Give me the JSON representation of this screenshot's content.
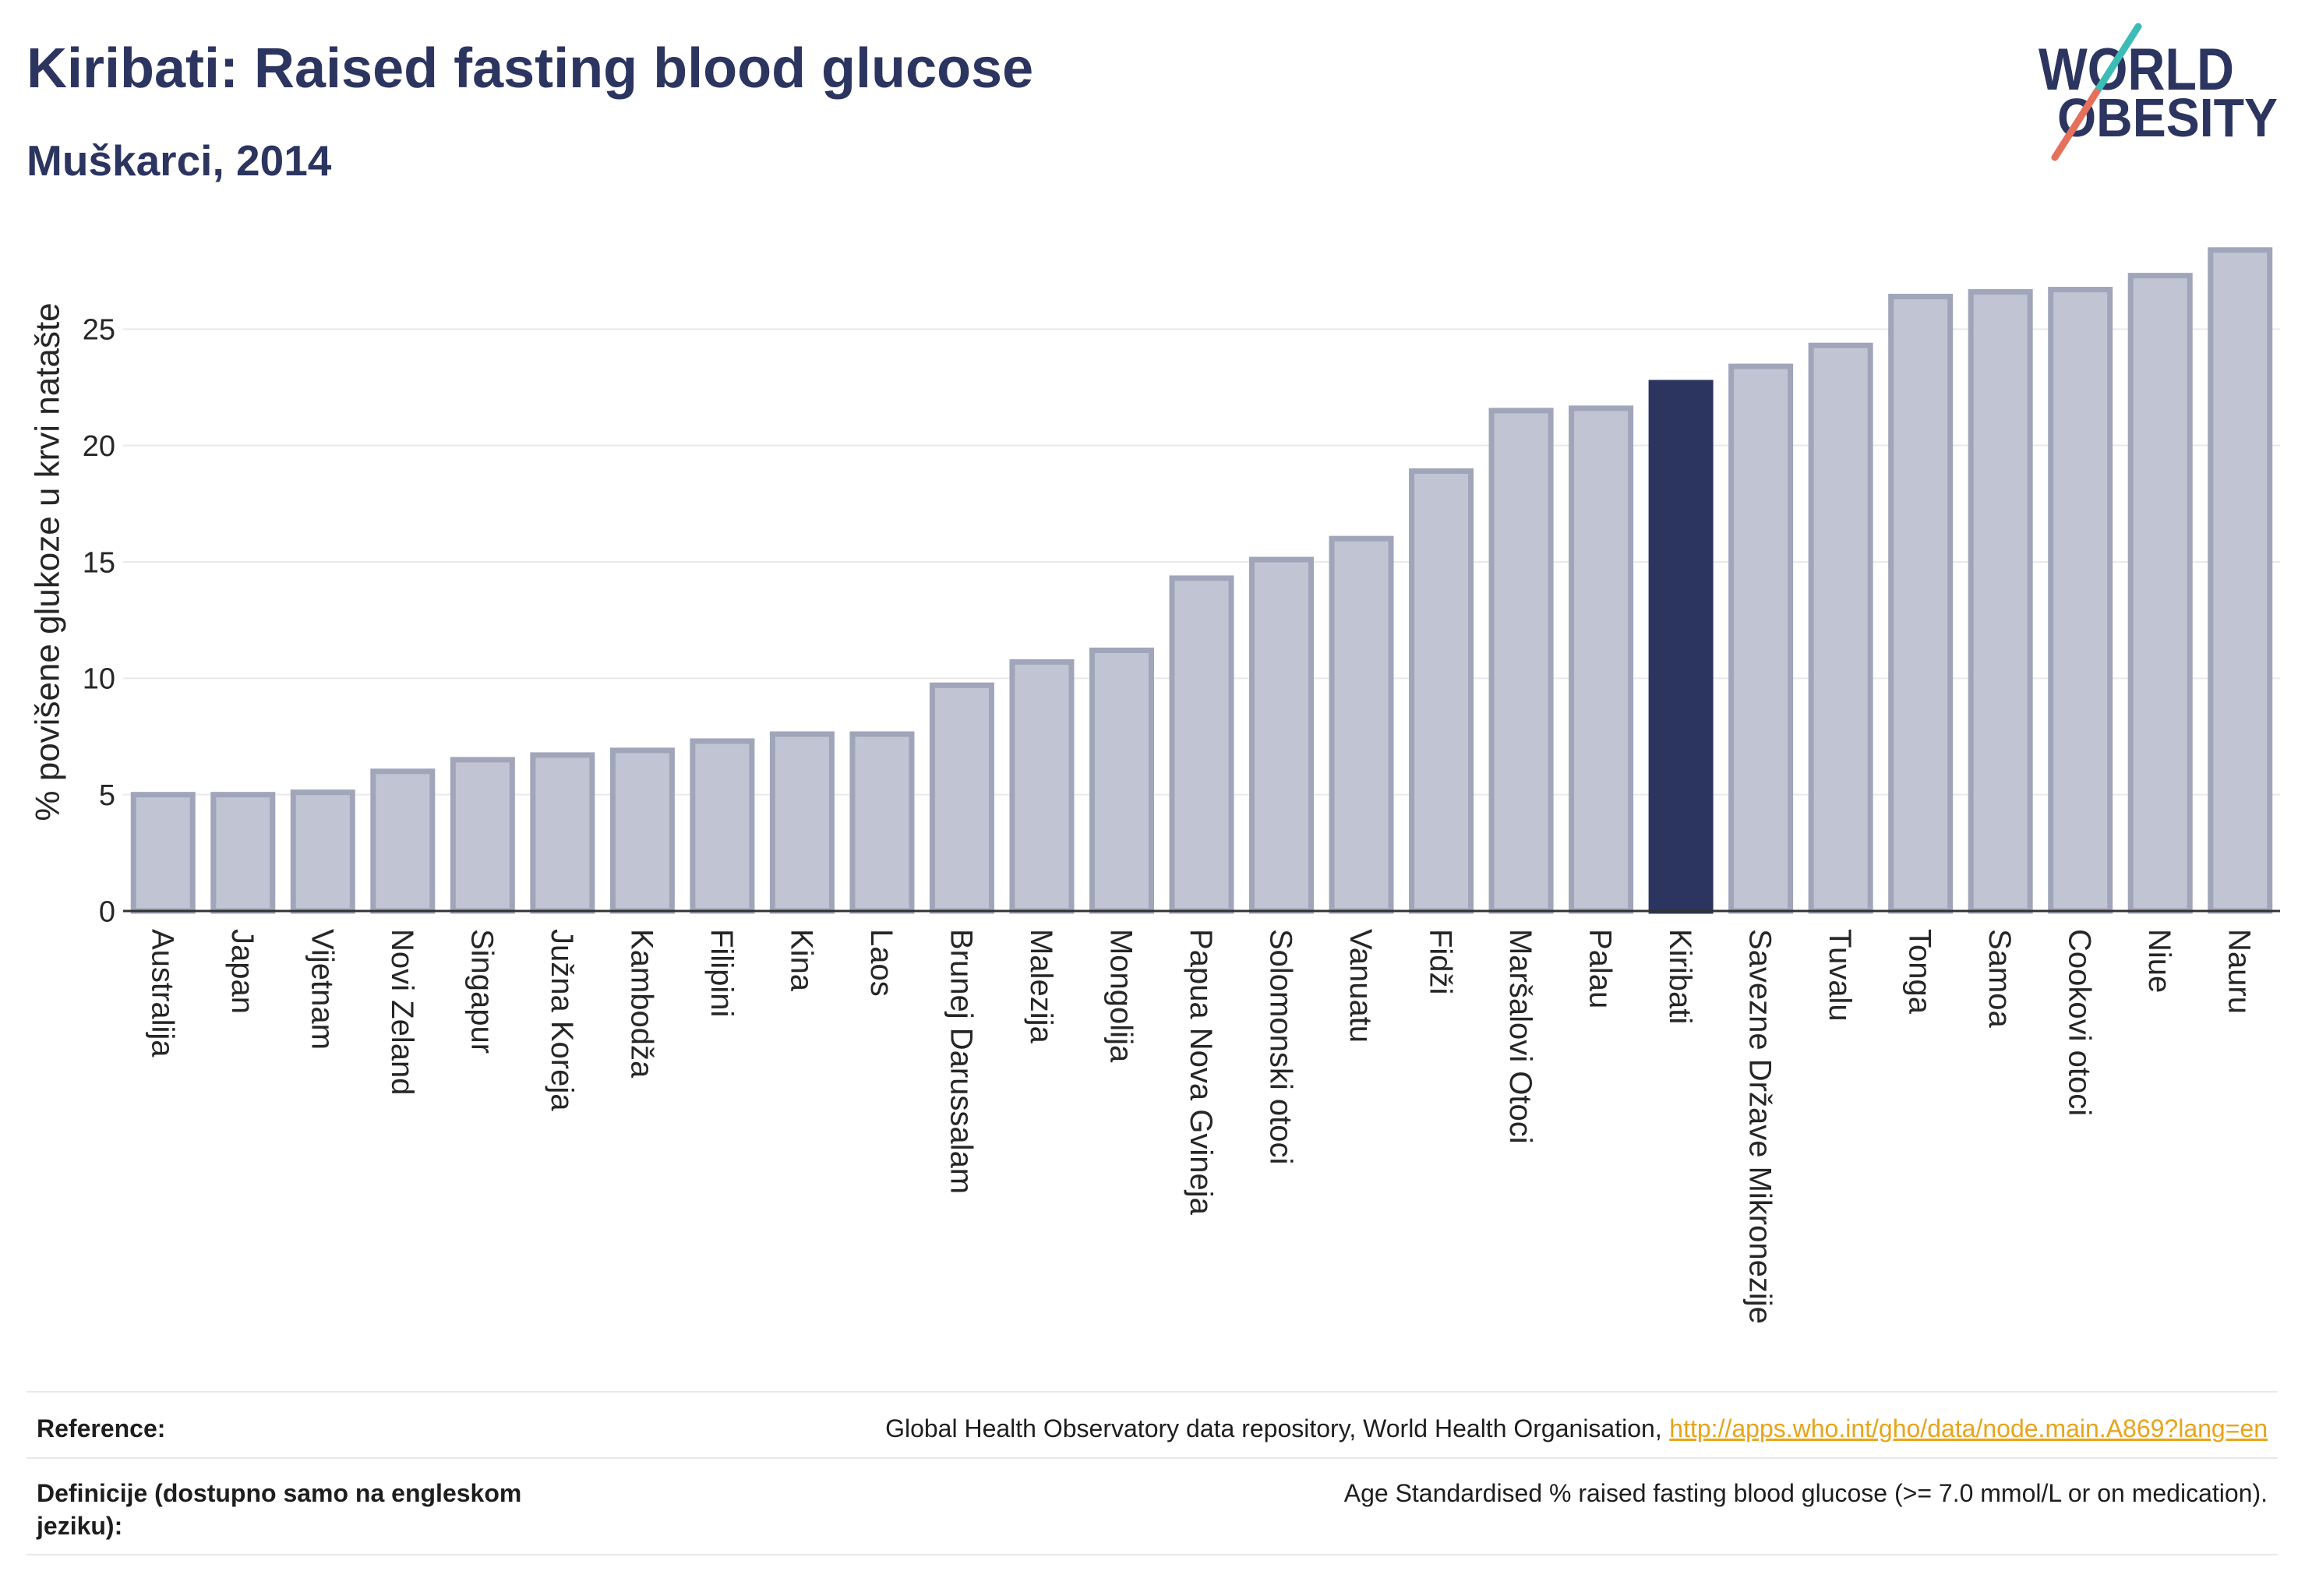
{
  "chart_data": {
    "type": "bar",
    "title": "Kiribati: Raised fasting blood glucose",
    "subtitle": "Muškarci, 2014",
    "xlabel": "",
    "ylabel": "% povišene glukoze u krvi natašte",
    "categories": [
      "Australija",
      "Japan",
      "Vijetnam",
      "Novi Zeland",
      "Singapur",
      "Južna Koreja",
      "Kambodža",
      "Filipini",
      "Kina",
      "Laos",
      "Brunej Darussalam",
      "Malezija",
      "Mongolija",
      "Papua Nova Gvineja",
      "Solomonski otoci",
      "Vanuatu",
      "Fidži",
      "Maršalovi Otoci",
      "Palau",
      "Kiribati",
      "Savezne Države Mikronezije",
      "Tuvalu",
      "Tonga",
      "Samoa",
      "Cookovi otoci",
      "Niue",
      "Nauru"
    ],
    "values": [
      5.0,
      5.0,
      5.1,
      6.0,
      6.5,
      6.7,
      6.9,
      7.3,
      7.6,
      7.6,
      9.7,
      10.7,
      11.2,
      14.3,
      15.1,
      16.0,
      18.9,
      21.5,
      21.6,
      22.7,
      23.4,
      24.3,
      26.4,
      26.6,
      26.7,
      27.3,
      28.4
    ],
    "highlight": "Kiribati",
    "yticks": [
      0,
      5,
      10,
      15,
      20,
      25
    ],
    "ylim": [
      0,
      30
    ],
    "grid": true
  },
  "logo": {
    "line1": "WORLD",
    "line2": "OBESITY"
  },
  "footer": {
    "reference_label": "Reference:",
    "reference_text": "Global Health Observatory data repository, World Health Organisation,",
    "reference_link": "http://apps.who.int/gho/data/node.main.A869?lang=en",
    "definition_label": "Definicije (dostupno samo na engleskom jeziku):",
    "definition_text": "Age Standardised % raised fasting blood glucose (>= 7.0 mmol/L or on medication)."
  },
  "colors": {
    "title": "#2c3560",
    "bar": "#c1c4d2",
    "bar_border": "#a0a5ba",
    "highlight": "#2b3560",
    "grid": "#e9e9e9",
    "axis": "#333333",
    "link": "#e8a41a",
    "logo_teal": "#3bbcb5",
    "logo_coral": "#e5705c"
  }
}
